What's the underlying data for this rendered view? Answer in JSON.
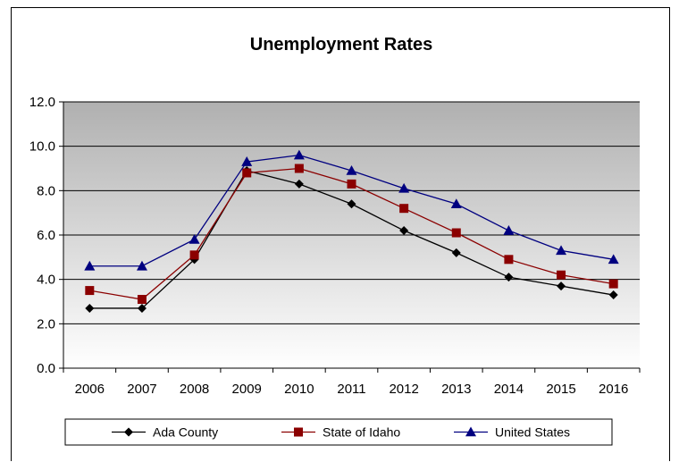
{
  "chart_data": {
    "type": "line",
    "title": "Unemployment Rates",
    "xlabel": "",
    "ylabel": "",
    "categories": [
      "2006",
      "2007",
      "2008",
      "2009",
      "2010",
      "2011",
      "2012",
      "2013",
      "2014",
      "2015",
      "2016"
    ],
    "ylim": [
      0,
      12
    ],
    "yticks": [
      "0.0",
      "2.0",
      "4.0",
      "6.0",
      "8.0",
      "10.0",
      "12.0"
    ],
    "grid": true,
    "legend_position": "bottom",
    "series": [
      {
        "name": "Ada County",
        "color": "#000000",
        "marker": "diamond",
        "values": [
          2.7,
          2.7,
          4.9,
          8.9,
          8.3,
          7.4,
          6.2,
          5.2,
          4.1,
          3.7,
          3.3
        ]
      },
      {
        "name": "State of Idaho",
        "color": "#8B0000",
        "marker": "square",
        "values": [
          3.5,
          3.1,
          5.1,
          8.8,
          9.0,
          8.3,
          7.2,
          6.1,
          4.9,
          4.2,
          3.8
        ]
      },
      {
        "name": "United States",
        "color": "#000080",
        "marker": "triangle",
        "values": [
          4.6,
          4.6,
          5.8,
          9.3,
          9.6,
          8.9,
          8.1,
          7.4,
          6.2,
          5.3,
          4.9
        ]
      }
    ]
  }
}
